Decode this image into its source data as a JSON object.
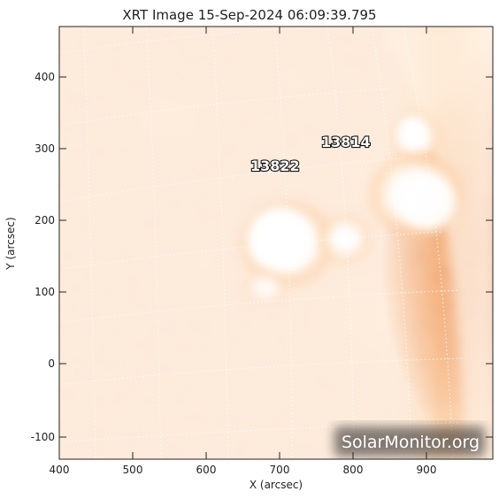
{
  "title": "XRT Image 15-Sep-2024 06:09:39.795",
  "xlabel": "X (arcsec)",
  "ylabel": "Y (arcsec)",
  "x_ticks": [
    "400",
    "500",
    "600",
    "700",
    "800",
    "900"
  ],
  "y_ticks": [
    "400",
    "300",
    "200",
    "100",
    "0",
    "-100"
  ],
  "active_regions": [
    {
      "number": "13814"
    },
    {
      "number": "13822"
    }
  ],
  "watermark": "SolarMonitor.org",
  "colors": {
    "disk_dark": "#c83b0a",
    "disk_mid": "#e86a1e",
    "bright": "#ffffff",
    "grid": "#ffffff"
  }
}
